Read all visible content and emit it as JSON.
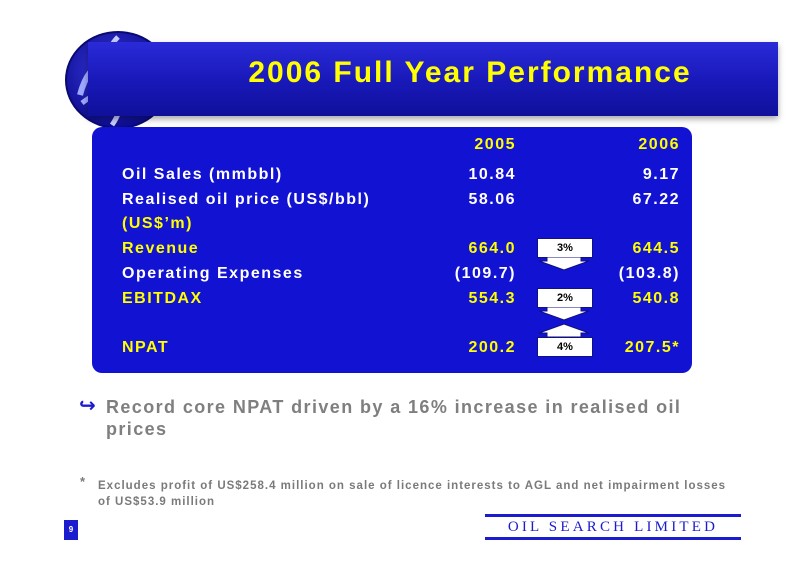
{
  "slide": {
    "title": "2006 Full Year Performance",
    "page_number": "9",
    "brand": "OIL SEARCH LIMITED"
  },
  "table": {
    "years": [
      "2005",
      "2006"
    ],
    "rows": [
      {
        "label": "Oil Sales (mmbbl)",
        "v2005": "10.84",
        "v2006": "9.17",
        "highlight": false
      },
      {
        "label": "Realised oil price (US$/bbl)",
        "v2005": "58.06",
        "v2006": "67.22",
        "highlight": false
      },
      {
        "label": "(US$’m)",
        "v2005": "",
        "v2006": "",
        "highlight": true
      },
      {
        "label": "Revenue",
        "v2005": "664.0",
        "v2006": "644.5",
        "highlight": true
      },
      {
        "label": "Operating Expenses",
        "v2005": "(109.7)",
        "v2006": "(103.8)",
        "highlight": false
      },
      {
        "label": "EBITDAX",
        "v2005": "554.3",
        "v2006": "540.8",
        "highlight": true
      },
      {
        "label": "NPAT",
        "v2005": "200.2",
        "v2006": "207.5*",
        "highlight": true
      }
    ],
    "changes": [
      {
        "row": "Revenue",
        "percent": "3%",
        "direction": "down"
      },
      {
        "row": "EBITDAX",
        "percent": "2%",
        "direction": "down"
      },
      {
        "row": "NPAT",
        "percent": "4%",
        "direction": "up"
      }
    ]
  },
  "bullet": {
    "text": "Record core NPAT driven by a 16% increase in realised oil prices"
  },
  "footnote": {
    "marker": "*",
    "text": "Excludes profit of US$258.4 million on sale of licence interests to AGL and net impairment losses of US$53.9 million"
  },
  "colors": {
    "title_bar": "#1818b8",
    "panel": "#1212d2",
    "highlight_text": "#ffff00",
    "body_text": "#ffffff",
    "bullet_text": "#7f7f7f",
    "brand": "#1c1ccf"
  }
}
